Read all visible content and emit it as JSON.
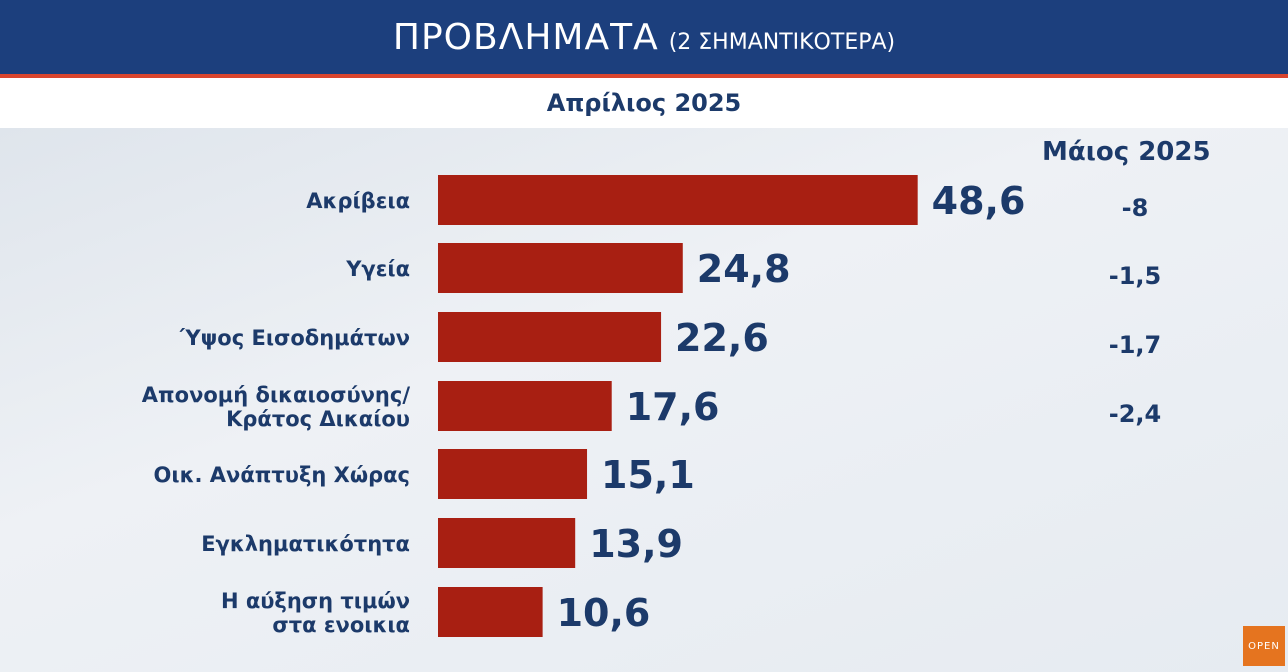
{
  "header": {
    "title": "ΠΡΟΒΛΗΜΑΤΑ",
    "title_note": "(2 ΣΗΜΑΝΤΙΚΟΤΕΡΑ)",
    "period": "Απρίλιος 2025",
    "compare_header": "Μάιος 2025"
  },
  "logo": {
    "text": "OPEN"
  },
  "colors": {
    "bar": "#a81f12",
    "text": "#1c3a6a",
    "title_bg": "#1c3f7d",
    "accent": "#d9452e"
  },
  "chart_data": {
    "type": "bar",
    "orientation": "horizontal",
    "title": "ΠΡΟΒΛΗΜΑΤΑ (2 ΣΗΜΑΝΤΙΚΟΤΕΡΑ)",
    "subtitle": "Απρίλιος 2025",
    "categories": [
      [
        "Ακρίβεια"
      ],
      [
        "Υγεία"
      ],
      [
        "Ύψος Εισοδημάτων"
      ],
      [
        "Απονομή δικαιοσύνης/",
        "Κράτος Δικαίου"
      ],
      [
        "Οικ. Ανάπτυξη Χώρας"
      ],
      [
        "Εγκληματικότητα"
      ],
      [
        "Η αύξηση τιμών",
        "στα ενοικια"
      ]
    ],
    "values": [
      48.6,
      24.8,
      22.6,
      17.6,
      15.1,
      13.9,
      10.6
    ],
    "value_labels": [
      "48,6",
      "24,8",
      "22,6",
      "17,6",
      "15,1",
      "13,9",
      "10,6"
    ],
    "change_header": "Μάιος 2025",
    "changes": [
      "-8",
      "-1,5",
      "-1,7",
      "-2,4",
      "",
      "",
      ""
    ]
  }
}
